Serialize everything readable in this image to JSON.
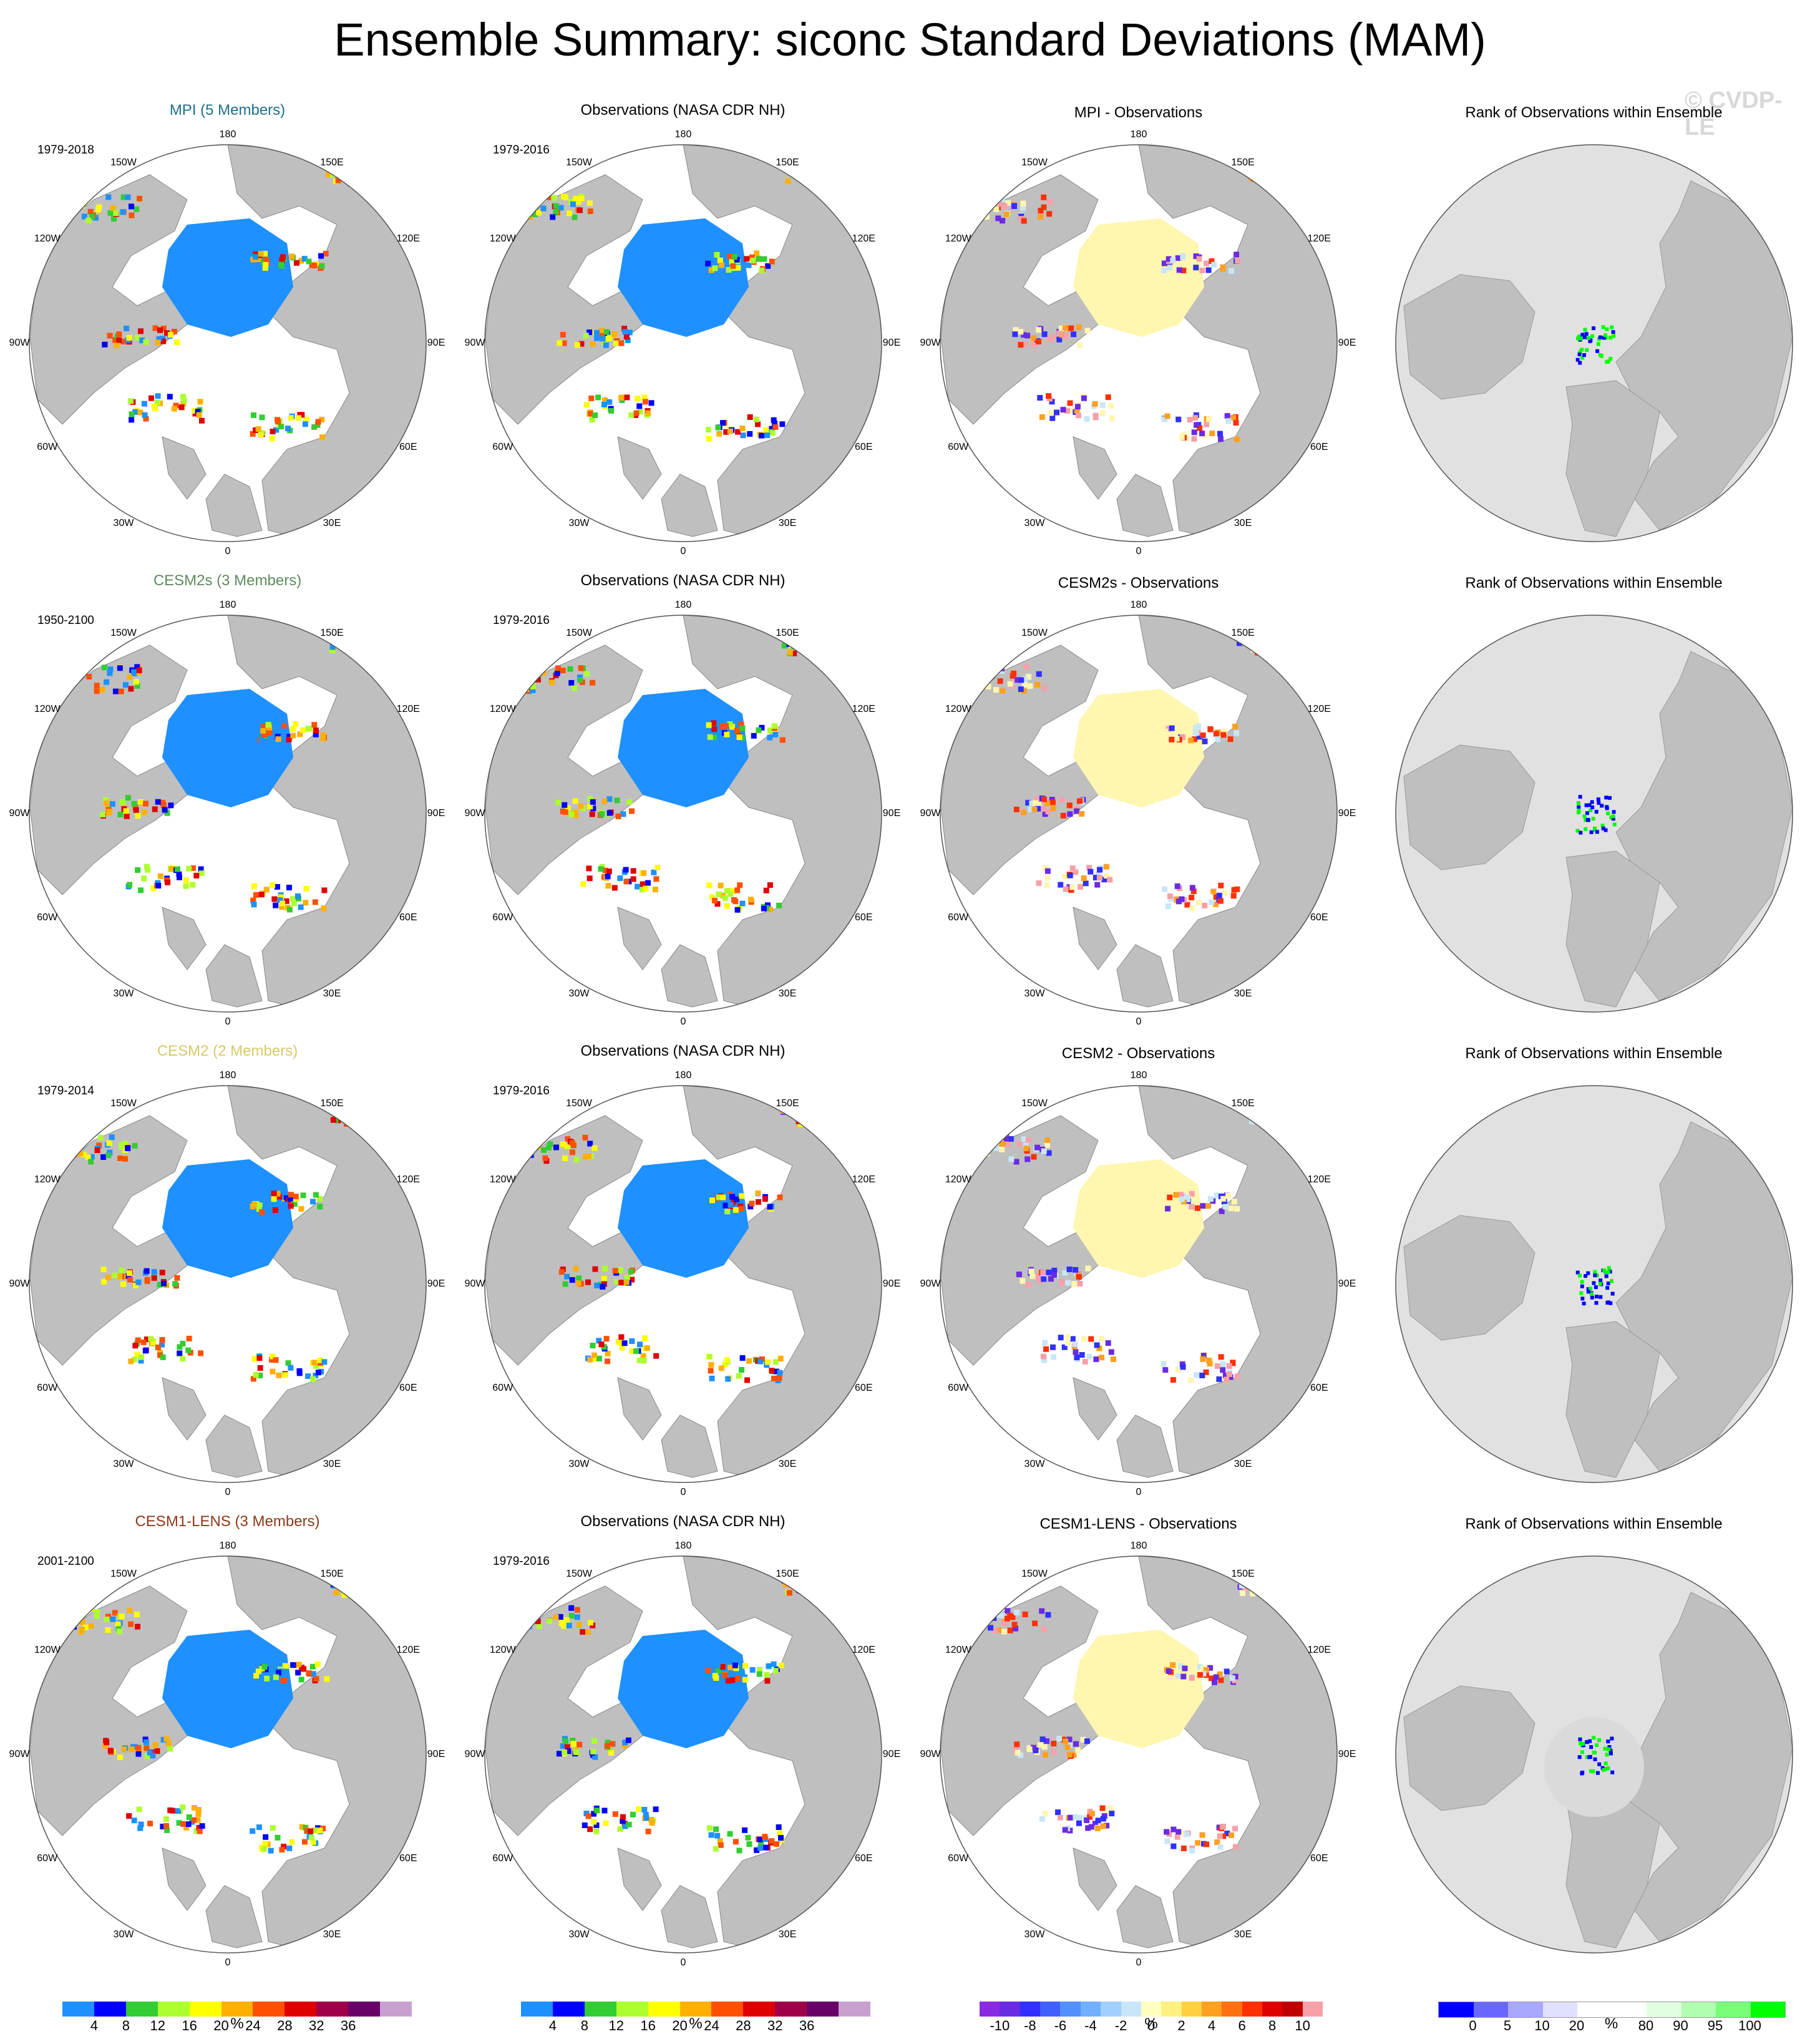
{
  "title": "Ensemble Summary: siconc Standard Deviations (MAM)",
  "watermark": "© CVDP-LE",
  "lon_labels": {
    "l180": "180",
    "l150w": "150W",
    "l150e": "150E",
    "l120w": "120W",
    "l120e": "120E",
    "l90w": "90W",
    "l90e": "90E",
    "l60w": "60W",
    "l60e": "60E",
    "l30w": "30W",
    "l30e": "30E",
    "l0": "0"
  },
  "colors": {
    "land": "#bfbfbf",
    "rank_ocean": "#e1e1e1",
    "mpi_title": "#1f6e8c",
    "cesm2s_title": "#5e8b5e",
    "cesm2_title": "#d8c96a",
    "cesm1_title": "#8b3a1a"
  },
  "chart_data": [
    {
      "type": "heatmap",
      "map": "polar-stereographic-nh",
      "title": "MPI (5 Members)",
      "period": "1979-2018",
      "row": 0,
      "col": 0,
      "kind": "std"
    },
    {
      "type": "heatmap",
      "map": "polar-stereographic-nh",
      "title": "Observations (NASA CDR NH)",
      "period": "1979-2016",
      "row": 0,
      "col": 1,
      "kind": "obs"
    },
    {
      "type": "heatmap",
      "map": "polar-stereographic-nh",
      "title": "MPI - Observations",
      "period": "",
      "row": 0,
      "col": 2,
      "kind": "diff"
    },
    {
      "type": "heatmap",
      "map": "polar-stereographic-nh",
      "title": "Rank of Observations within Ensemble",
      "period": "",
      "row": 0,
      "col": 3,
      "kind": "rank"
    },
    {
      "type": "heatmap",
      "map": "polar-stereographic-nh",
      "title": "CESM2s (3 Members)",
      "period": "1950-2100",
      "row": 1,
      "col": 0,
      "kind": "std"
    },
    {
      "type": "heatmap",
      "map": "polar-stereographic-nh",
      "title": "Observations (NASA CDR NH)",
      "period": "1979-2016",
      "row": 1,
      "col": 1,
      "kind": "obs"
    },
    {
      "type": "heatmap",
      "map": "polar-stereographic-nh",
      "title": "CESM2s - Observations",
      "period": "",
      "row": 1,
      "col": 2,
      "kind": "diff"
    },
    {
      "type": "heatmap",
      "map": "polar-stereographic-nh",
      "title": "Rank of Observations within Ensemble",
      "period": "",
      "row": 1,
      "col": 3,
      "kind": "rank"
    },
    {
      "type": "heatmap",
      "map": "polar-stereographic-nh",
      "title": "CESM2 (2 Members)",
      "period": "1979-2014",
      "row": 2,
      "col": 0,
      "kind": "std"
    },
    {
      "type": "heatmap",
      "map": "polar-stereographic-nh",
      "title": "Observations (NASA CDR NH)",
      "period": "1979-2016",
      "row": 2,
      "col": 1,
      "kind": "obs"
    },
    {
      "type": "heatmap",
      "map": "polar-stereographic-nh",
      "title": "CESM2 - Observations",
      "period": "",
      "row": 2,
      "col": 2,
      "kind": "diff"
    },
    {
      "type": "heatmap",
      "map": "polar-stereographic-nh",
      "title": "Rank of Observations within Ensemble",
      "period": "",
      "row": 2,
      "col": 3,
      "kind": "rank"
    },
    {
      "type": "heatmap",
      "map": "polar-stereographic-nh",
      "title": "CESM1-LENS (3 Members)",
      "period": "2001-2100",
      "row": 3,
      "col": 0,
      "kind": "std"
    },
    {
      "type": "heatmap",
      "map": "polar-stereographic-nh",
      "title": "Observations (NASA CDR NH)",
      "period": "1979-2016",
      "row": 3,
      "col": 1,
      "kind": "obs"
    },
    {
      "type": "heatmap",
      "map": "polar-stereographic-nh",
      "title": "CESM1-LENS - Observations",
      "period": "",
      "row": 3,
      "col": 2,
      "kind": "diff"
    },
    {
      "type": "heatmap",
      "map": "polar-stereographic-nh",
      "title": "Rank of Observations within Ensemble",
      "period": "",
      "row": 3,
      "col": 3,
      "kind": "rank"
    }
  ],
  "colorbars": [
    {
      "unit": "%",
      "ticks": [
        "4",
        "8",
        "12",
        "16",
        "20",
        "24",
        "28",
        "32",
        "36"
      ],
      "colors": [
        "#1e90ff",
        "#0000ff",
        "#32cd32",
        "#adff2f",
        "#ffff00",
        "#ffb000",
        "#ff5000",
        "#e00000",
        "#a0004a",
        "#6a006a",
        "#c8a0d0"
      ]
    },
    {
      "unit": "%",
      "ticks": [
        "4",
        "8",
        "12",
        "16",
        "20",
        "24",
        "28",
        "32",
        "36"
      ],
      "colors": [
        "#1e90ff",
        "#0000ff",
        "#32cd32",
        "#adff2f",
        "#ffff00",
        "#ffb000",
        "#ff5000",
        "#e00000",
        "#a0004a",
        "#6a006a",
        "#c8a0d0"
      ]
    },
    {
      "unit": "%",
      "ticks": [
        "-10",
        "-8",
        "-6",
        "-4",
        "-2",
        "0",
        "2",
        "4",
        "6",
        "8",
        "10"
      ],
      "colors": [
        "#8a2be2",
        "#6a2be2",
        "#3030ff",
        "#4060ff",
        "#5090ff",
        "#70b0ff",
        "#a0d0ff",
        "#c8e6f8",
        "#ffffc0",
        "#fff080",
        "#ffd040",
        "#ffa020",
        "#ff7010",
        "#ff3000",
        "#e00000",
        "#c00000",
        "#f8a0a8"
      ]
    },
    {
      "unit": "%",
      "ticks": [
        "0",
        "5",
        "10",
        "20",
        "80",
        "90",
        "95",
        "100"
      ],
      "colors": [
        "#0000ff",
        "#6868ff",
        "#a8a8ff",
        "#e0e0ff",
        "#ffffff",
        "#ffffff",
        "#e0ffe0",
        "#b0ffb0",
        "#78ff78",
        "#00ff00"
      ]
    }
  ]
}
